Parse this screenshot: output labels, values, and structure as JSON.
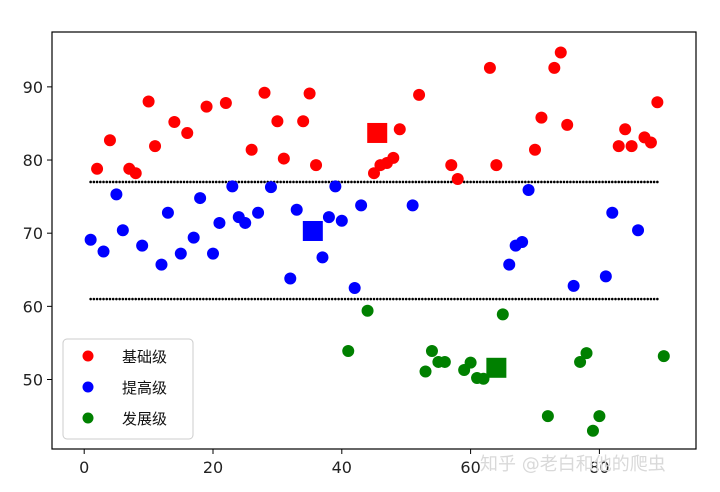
{
  "chart_data": {
    "type": "scatter",
    "xlim": [
      -5,
      95
    ],
    "ylim": [
      40.5,
      97.5
    ],
    "xticks": [
      0,
      20,
      40,
      60,
      80
    ],
    "yticks": [
      50,
      60,
      70,
      80,
      90
    ],
    "grid": false,
    "legend_position": "lower-left",
    "threshold_lines": [
      {
        "y": 77,
        "x_range": [
          1,
          89
        ],
        "style": "dotted",
        "color": "#000000"
      },
      {
        "y": 61,
        "x_range": [
          1,
          89
        ],
        "style": "dotted",
        "color": "#000000"
      }
    ],
    "series": [
      {
        "name": "基础级",
        "color": "#ff0000",
        "points": [
          [
            2,
            78.8
          ],
          [
            4,
            82.7
          ],
          [
            7,
            78.8
          ],
          [
            8,
            78.2
          ],
          [
            10,
            88
          ],
          [
            11,
            81.9
          ],
          [
            14,
            85.2
          ],
          [
            16,
            83.7
          ],
          [
            19,
            87.3
          ],
          [
            22,
            87.8
          ],
          [
            26,
            81.4
          ],
          [
            28,
            89.2
          ],
          [
            30,
            85.3
          ],
          [
            31,
            80.2
          ],
          [
            34,
            85.3
          ],
          [
            35,
            89.1
          ],
          [
            36,
            79.3
          ],
          [
            45,
            78.2
          ],
          [
            46,
            79.3
          ],
          [
            47,
            79.6
          ],
          [
            48,
            80.3
          ],
          [
            49,
            84.2
          ],
          [
            52,
            88.9
          ],
          [
            57,
            79.3
          ],
          [
            58,
            77.4
          ],
          [
            63,
            92.6
          ],
          [
            64,
            79.3
          ],
          [
            70,
            81.4
          ],
          [
            71,
            85.8
          ],
          [
            73,
            92.6
          ],
          [
            74,
            94.7
          ],
          [
            75,
            84.8
          ],
          [
            83,
            81.9
          ],
          [
            84,
            84.2
          ],
          [
            85,
            81.9
          ],
          [
            87,
            83.1
          ],
          [
            88,
            82.4
          ],
          [
            89,
            87.9
          ]
        ],
        "centroid": [
          45.5,
          83.7
        ]
      },
      {
        "name": "提高级",
        "color": "#0000ff",
        "points": [
          [
            1,
            69.1
          ],
          [
            3,
            67.5
          ],
          [
            5,
            75.3
          ],
          [
            6,
            70.4
          ],
          [
            9,
            68.3
          ],
          [
            12,
            65.7
          ],
          [
            13,
            72.8
          ],
          [
            15,
            67.2
          ],
          [
            17,
            69.4
          ],
          [
            18,
            74.8
          ],
          [
            20,
            67.2
          ],
          [
            21,
            71.4
          ],
          [
            23,
            76.4
          ],
          [
            24,
            72.2
          ],
          [
            25,
            71.4
          ],
          [
            27,
            72.8
          ],
          [
            29,
            76.3
          ],
          [
            32,
            63.8
          ],
          [
            33,
            73.2
          ],
          [
            37,
            66.7
          ],
          [
            38,
            72.2
          ],
          [
            39,
            76.4
          ],
          [
            40,
            71.7
          ],
          [
            42,
            62.5
          ],
          [
            43,
            73.8
          ],
          [
            51,
            73.8
          ],
          [
            66,
            65.7
          ],
          [
            67,
            68.3
          ],
          [
            68,
            68.8
          ],
          [
            69,
            75.9
          ],
          [
            76,
            62.8
          ],
          [
            81,
            64.1
          ],
          [
            82,
            72.8
          ],
          [
            86,
            70.4
          ]
        ],
        "centroid": [
          35.5,
          70.3
        ]
      },
      {
        "name": "发展级",
        "color": "#008000",
        "points": [
          [
            41,
            53.9
          ],
          [
            44,
            59.4
          ],
          [
            53,
            51.1
          ],
          [
            54,
            53.9
          ],
          [
            55,
            52.4
          ],
          [
            56,
            52.4
          ],
          [
            59,
            51.3
          ],
          [
            60,
            52.3
          ],
          [
            61,
            50.2
          ],
          [
            62,
            50.1
          ],
          [
            65,
            58.9
          ],
          [
            72,
            45
          ],
          [
            77,
            52.4
          ],
          [
            78,
            53.6
          ],
          [
            79,
            43
          ],
          [
            80,
            45
          ],
          [
            90,
            53.2
          ]
        ],
        "centroid": [
          64,
          51.6
        ]
      }
    ]
  },
  "watermark": "知乎 @老白和他的爬虫"
}
